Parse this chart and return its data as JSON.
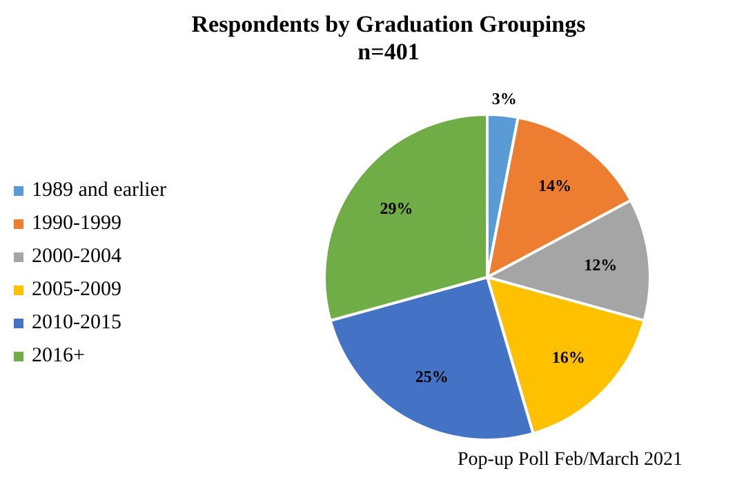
{
  "chart_data": {
    "type": "pie",
    "title": "Respondents by Graduation Groupings",
    "subtitle": "n=401",
    "categories": [
      "1989 and earlier",
      "1990-1999",
      "2000-2004",
      "2005-2009",
      "2010-2015",
      "2016+"
    ],
    "values": [
      3,
      14,
      12,
      16,
      25,
      29
    ],
    "colors": [
      "#5b9bd5",
      "#ed7d31",
      "#a5a5a5",
      "#ffc000",
      "#4472c4",
      "#70ad47"
    ],
    "value_labels": [
      "3%",
      "14%",
      "12%",
      "16%",
      "25%",
      "29%"
    ],
    "legend": "left",
    "annotations": [
      "Pop-up Poll Feb/March 2021"
    ]
  }
}
